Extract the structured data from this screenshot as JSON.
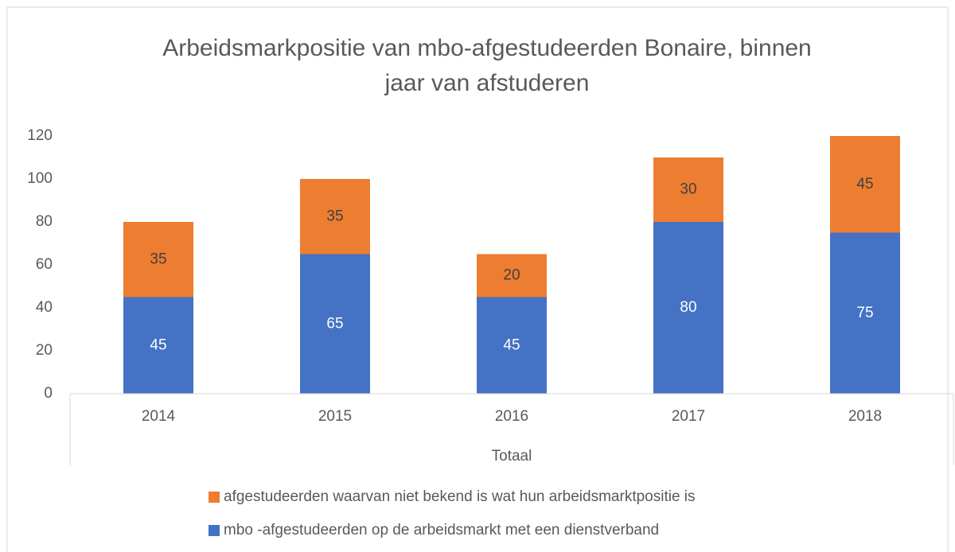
{
  "chart_data": {
    "type": "stacked_bar",
    "title": [
      "Arbeidsmarkpositie van mbo-afgestudeerden Bonaire, binnen",
      "jaar van afstuderen"
    ],
    "categories": [
      "2014",
      "2015",
      "2016",
      "2017",
      "2018"
    ],
    "category_group": "Totaal",
    "series": [
      {
        "name": "mbo -afgestudeerden op de arbeidsmarkt met een dienstverband",
        "color": "#4472c4",
        "values": [
          45,
          65,
          45,
          80,
          75
        ]
      },
      {
        "name": "afgestudeerden waarvan niet bekend is wat hun arbeidsmarktpositie is",
        "color": "#ed7d31",
        "values": [
          35,
          35,
          20,
          30,
          45
        ]
      }
    ],
    "ylim": [
      0,
      120
    ],
    "yticks": [
      0,
      20,
      40,
      60,
      80,
      100,
      120
    ],
    "grid": false,
    "legend": "bottom"
  }
}
